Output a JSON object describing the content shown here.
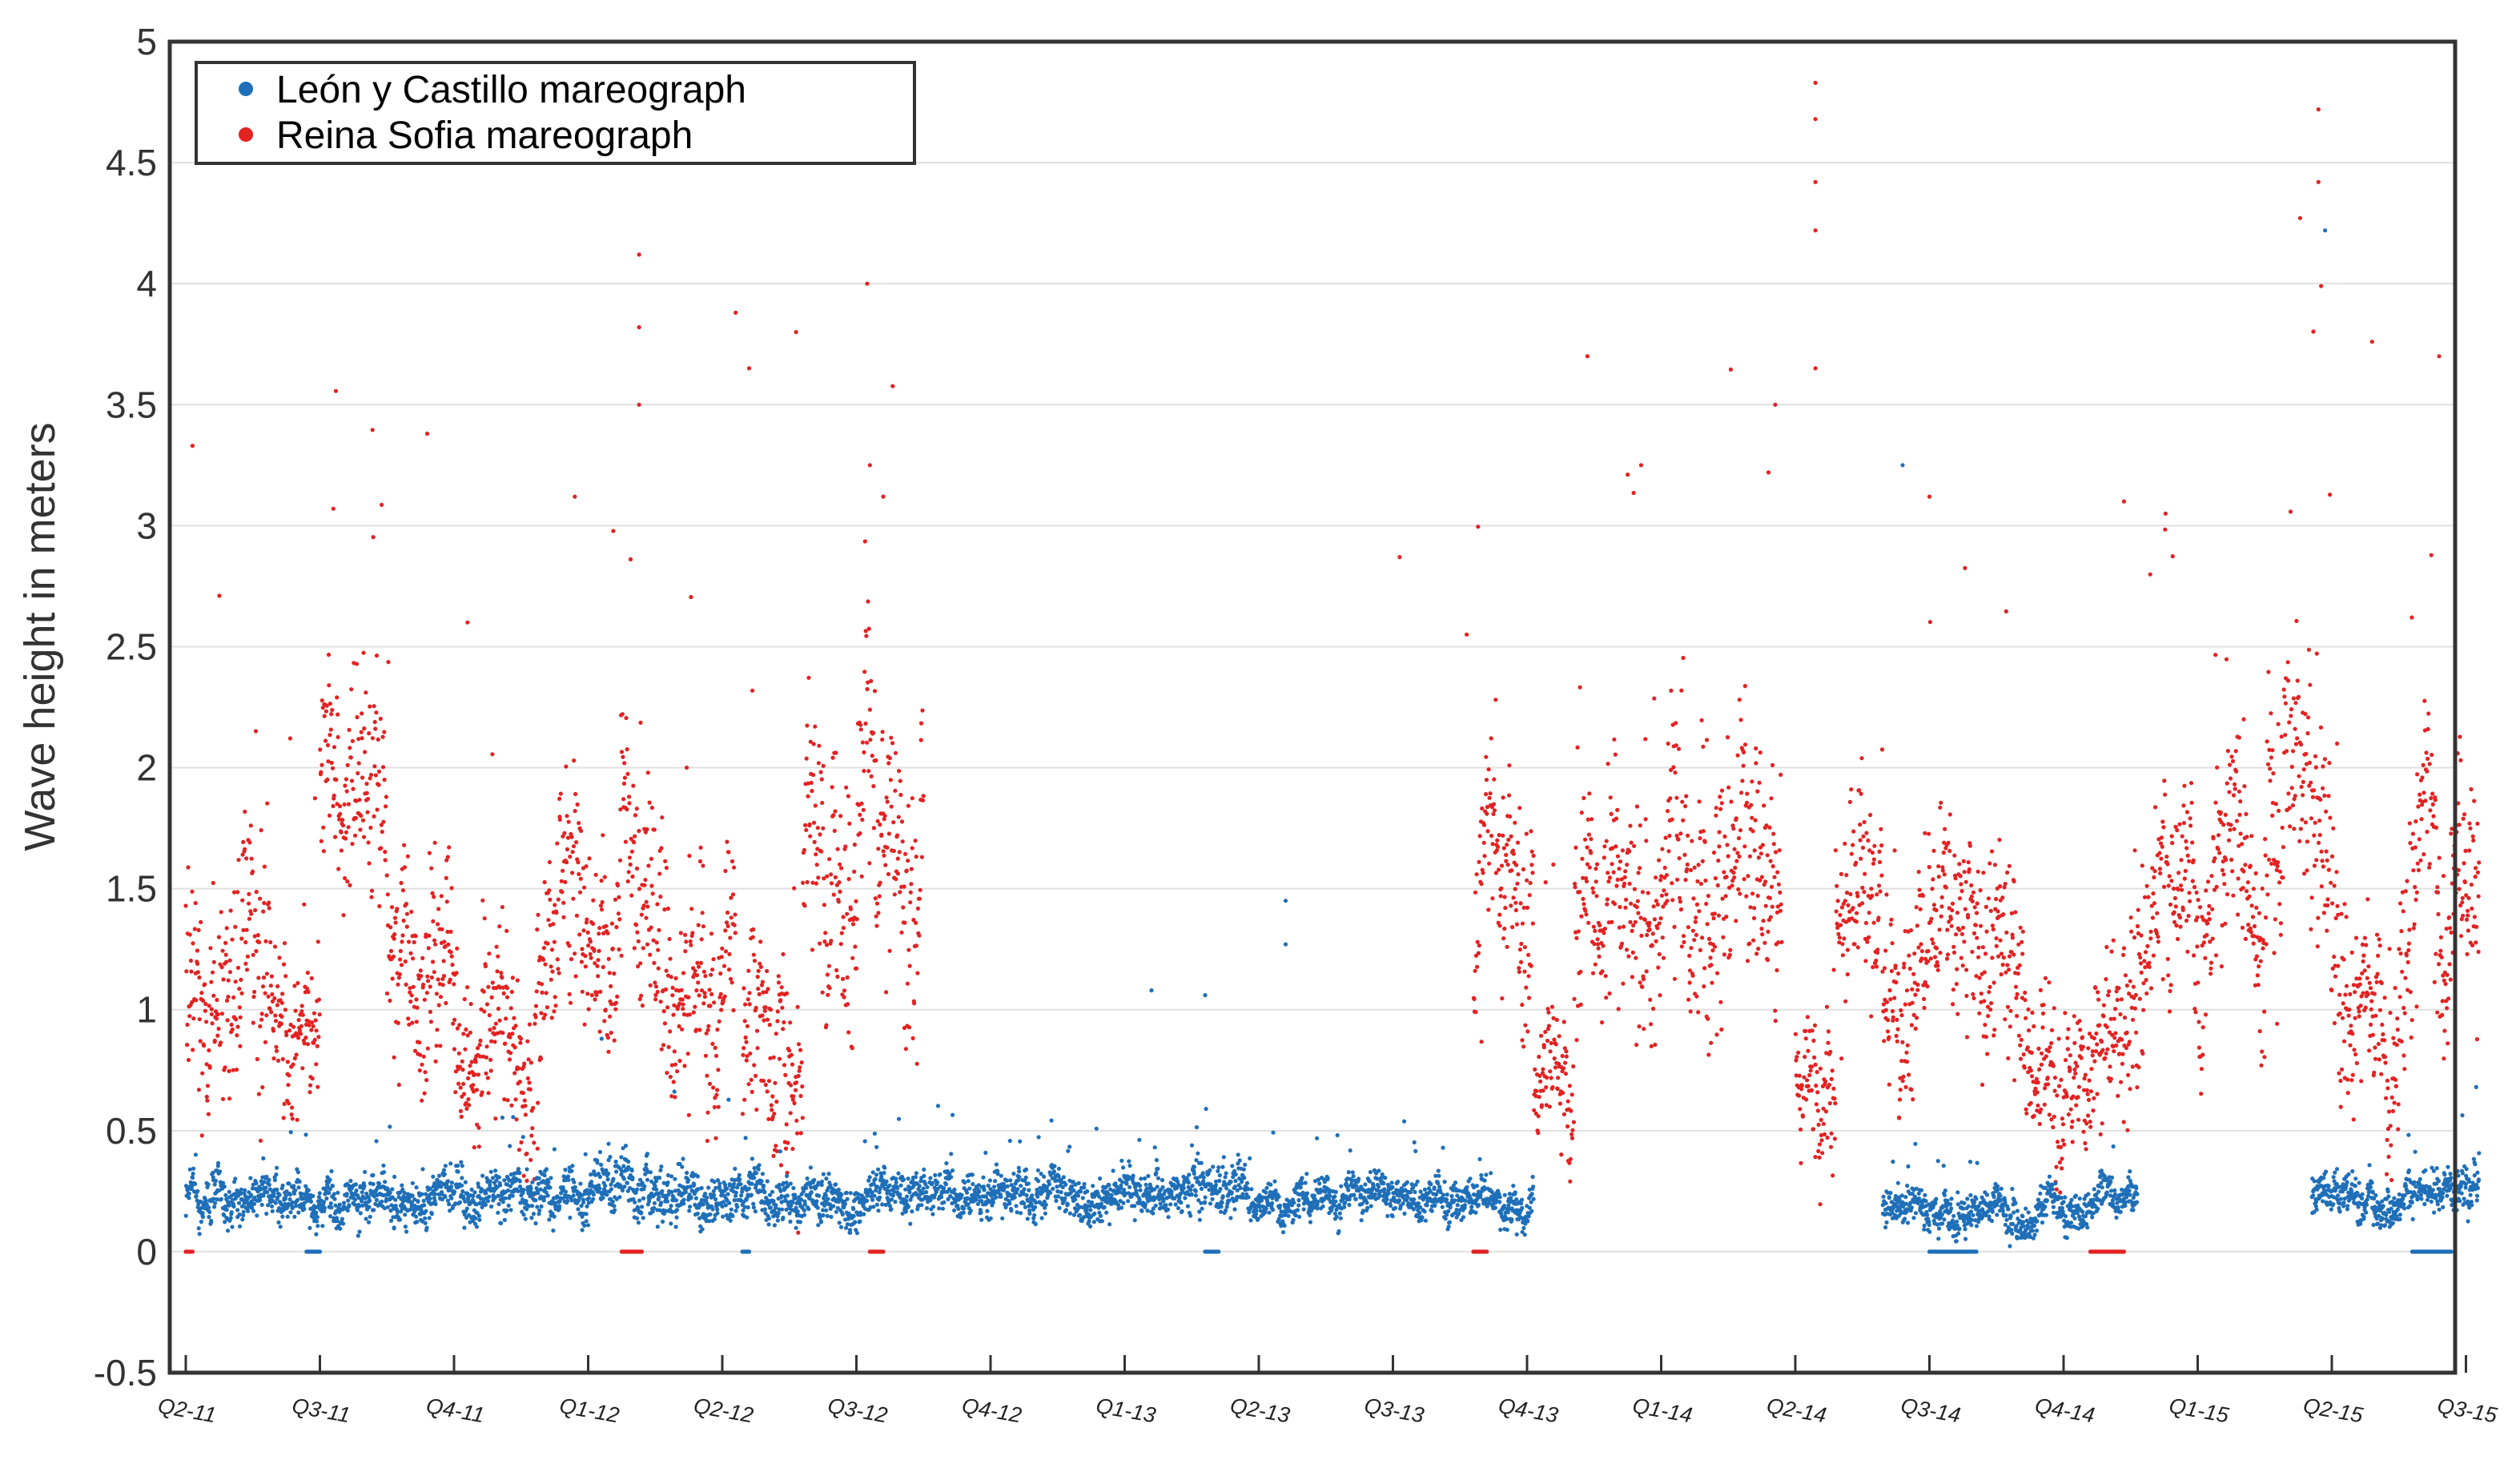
{
  "chart_data": {
    "type": "scatter",
    "title": "",
    "xlabel": "",
    "ylabel": "Wave height in meters",
    "ylim": [
      -0.5,
      5
    ],
    "yticks": [
      "-0.5",
      "0",
      "0.5",
      "1",
      "1.5",
      "2",
      "2.5",
      "3",
      "3.5",
      "4",
      "4.5",
      "5"
    ],
    "xlim": [
      0,
      17.1
    ],
    "x_units": "quarters since Q2-11",
    "x_categories": [
      "Q2-11",
      "Q3-11",
      "Q4-11",
      "Q1-12",
      "Q2-12",
      "Q3-12",
      "Q4-12",
      "Q1-13",
      "Q2-13",
      "Q3-13",
      "Q4-13",
      "Q1-14",
      "Q2-14",
      "Q3-14",
      "Q4-14",
      "Q1-15",
      "Q2-15",
      "Q3-15"
    ],
    "grid": "horizontal",
    "legend_position": "top-left",
    "series": [
      {
        "name": "León y Castillo mareograph",
        "color": "#1f6fb8",
        "segments": [
          {
            "x": [
              0.0,
              3.0
            ],
            "base": 0.22,
            "spread": 0.12
          },
          {
            "x": [
              3.0,
              4.15
            ],
            "base": 0.27,
            "spread": 0.15
          },
          {
            "x": [
              4.15,
              7.5
            ],
            "base": 0.22,
            "spread": 0.12
          },
          {
            "x": [
              7.5,
              7.9
            ],
            "base": 0.3,
            "spread": 0.15
          },
          {
            "x": [
              7.9,
              10.05
            ],
            "base": 0.22,
            "spread": 0.1
          },
          {
            "x": [
              12.65,
              14.55
            ],
            "base": 0.2,
            "spread": 0.1
          },
          {
            "x": [
              15.85,
              17.1
            ],
            "base": 0.25,
            "spread": 0.12
          }
        ],
        "outliers": [
          [
            7.2,
            1.08
          ],
          [
            7.6,
            1.06
          ],
          [
            8.2,
            1.45
          ],
          [
            8.2,
            1.27
          ],
          [
            12.8,
            3.25
          ],
          [
            15.95,
            4.22
          ],
          [
            3.1,
            0.88
          ]
        ]
      },
      {
        "name": "Reina Sofia mareograph",
        "color": "#e32222",
        "segments": [
          {
            "x": [
              0.0,
              0.6
            ],
            "base": 1.15,
            "spread": 0.6
          },
          {
            "x": [
              0.6,
              1.0
            ],
            "base": 0.95,
            "spread": 0.45
          },
          {
            "x": [
              1.0,
              1.5
            ],
            "base": 1.85,
            "spread": 0.55
          },
          {
            "x": [
              1.5,
              2.0
            ],
            "base": 1.2,
            "spread": 0.5
          },
          {
            "x": [
              2.0,
              2.6
            ],
            "base": 0.85,
            "spread": 0.45
          },
          {
            "x": [
              2.6,
              3.0
            ],
            "base": 1.4,
            "spread": 0.6
          },
          {
            "x": [
              3.0,
              3.6
            ],
            "base": 1.4,
            "spread": 0.6
          },
          {
            "x": [
              3.6,
              4.1
            ],
            "base": 1.2,
            "spread": 0.6
          },
          {
            "x": [
              4.15,
              4.6
            ],
            "base": 0.85,
            "spread": 0.5
          },
          {
            "x": [
              4.6,
              5.5
            ],
            "base": 1.5,
            "spread": 0.7
          },
          {
            "x": [
              9.6,
              10.05
            ],
            "base": 1.3,
            "spread": 0.6
          },
          {
            "x": [
              10.05,
              10.35
            ],
            "base": 0.6,
            "spread": 0.35
          },
          {
            "x": [
              10.35,
              11.0
            ],
            "base": 1.4,
            "spread": 0.6
          },
          {
            "x": [
              11.0,
              11.9
            ],
            "base": 1.7,
            "spread": 0.75
          },
          {
            "x": [
              12.0,
              12.3
            ],
            "base": 0.8,
            "spread": 0.4
          },
          {
            "x": [
              12.3,
              12.65
            ],
            "base": 1.5,
            "spread": 0.6
          },
          {
            "x": [
              12.65,
              13.7
            ],
            "base": 1.1,
            "spread": 0.55
          },
          {
            "x": [
              13.7,
              14.55
            ],
            "base": 0.75,
            "spread": 0.4
          },
          {
            "x": [
              14.55,
              15.5
            ],
            "base": 1.4,
            "spread": 0.55
          },
          {
            "x": [
              15.5,
              16.05
            ],
            "base": 1.8,
            "spread": 0.75
          },
          {
            "x": [
              16.05,
              16.5
            ],
            "base": 0.9,
            "spread": 0.5
          },
          {
            "x": [
              16.5,
              17.1
            ],
            "base": 1.4,
            "spread": 0.65
          }
        ],
        "outliers": [
          [
            0.05,
            3.33
          ],
          [
            1.1,
            3.07
          ],
          [
            1.8,
            3.38
          ],
          [
            2.1,
            2.6
          ],
          [
            2.9,
            3.12
          ],
          [
            3.38,
            4.12
          ],
          [
            3.38,
            3.82
          ],
          [
            3.38,
            3.5
          ],
          [
            4.1,
            3.88
          ],
          [
            4.2,
            3.65
          ],
          [
            4.55,
            3.8
          ],
          [
            5.08,
            4.0
          ],
          [
            5.1,
            3.25
          ],
          [
            5.2,
            3.12
          ],
          [
            9.05,
            2.87
          ],
          [
            10.45,
            3.7
          ],
          [
            10.85,
            3.25
          ],
          [
            11.8,
            3.22
          ],
          [
            11.85,
            3.5
          ],
          [
            12.15,
            4.83
          ],
          [
            12.15,
            4.68
          ],
          [
            12.15,
            4.42
          ],
          [
            12.15,
            4.22
          ],
          [
            12.15,
            3.65
          ],
          [
            13.0,
            3.12
          ],
          [
            15.9,
            4.72
          ],
          [
            15.9,
            4.42
          ],
          [
            15.92,
            3.99
          ],
          [
            16.3,
            3.76
          ],
          [
            16.8,
            3.7
          ],
          [
            14.45,
            3.1
          ],
          [
            9.55,
            2.55
          ]
        ]
      }
    ],
    "gaps_at_zero": [
      [
        0.0,
        0.05
      ],
      [
        0.9,
        1.0
      ],
      [
        3.25,
        3.4
      ],
      [
        4.15,
        4.2
      ],
      [
        5.1,
        5.2
      ],
      [
        7.6,
        7.7
      ],
      [
        9.6,
        9.7
      ],
      [
        13.0,
        13.35
      ],
      [
        14.2,
        14.45
      ],
      [
        16.6,
        16.9
      ]
    ]
  }
}
